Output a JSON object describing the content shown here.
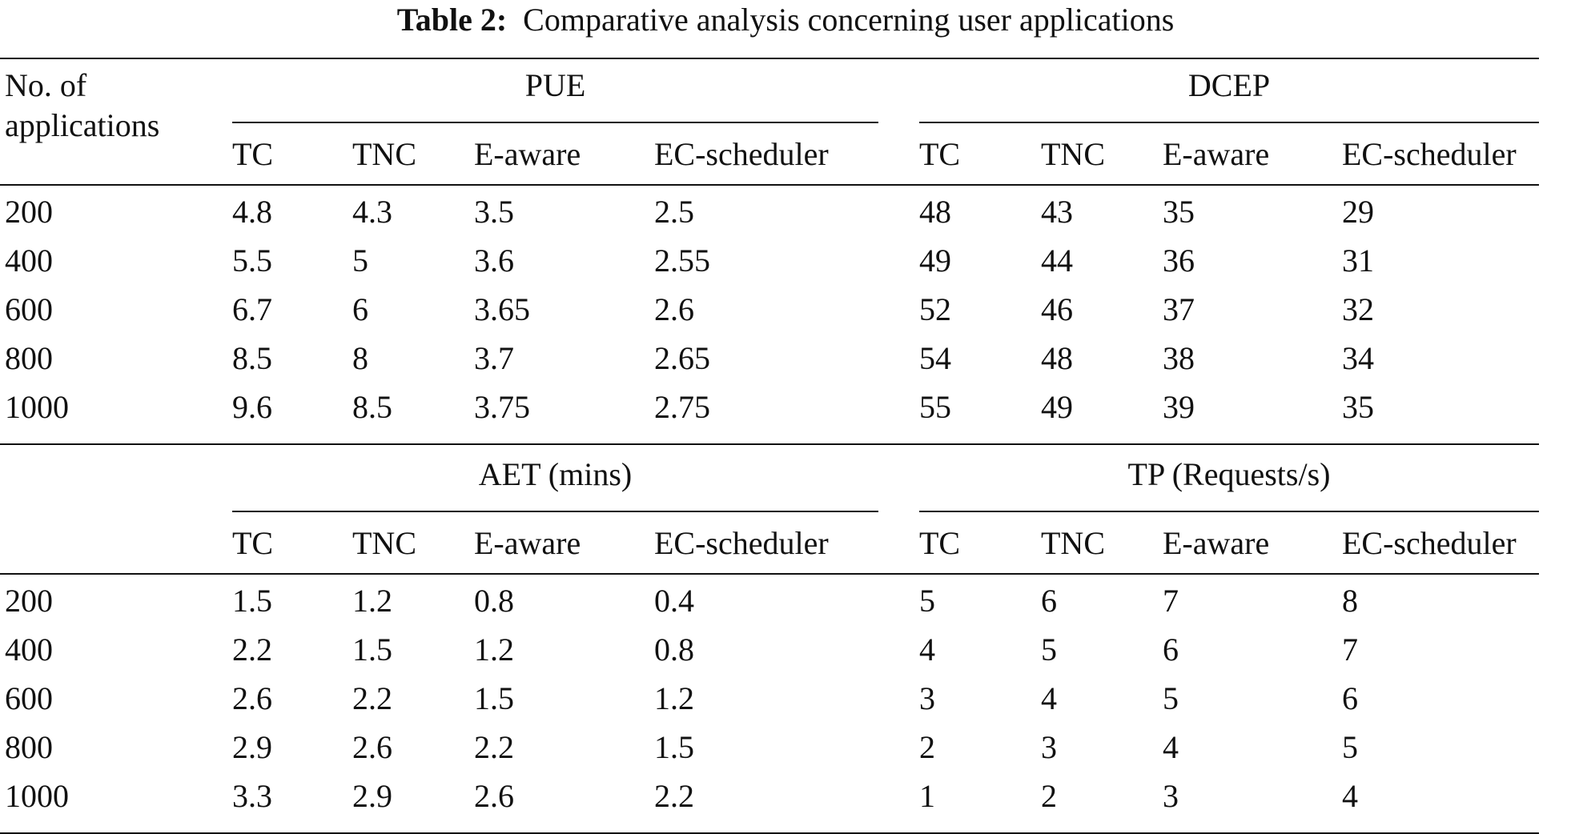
{
  "caption": {
    "label": "Table 2:",
    "text": "Comparative analysis concerning user applications"
  },
  "table": {
    "row_header_line1": "No. of",
    "row_header_line2": "applications",
    "sub_headers": [
      "TC",
      "TNC",
      "E-aware",
      "EC-scheduler"
    ],
    "panels": [
      {
        "left_metric": "PUE",
        "right_metric": "DCEP",
        "rows": [
          [
            "200",
            "4.8",
            "4.3",
            "3.5",
            "2.5",
            "48",
            "43",
            "35",
            "29"
          ],
          [
            "400",
            "5.5",
            "5",
            "3.6",
            "2.55",
            "49",
            "44",
            "36",
            "31"
          ],
          [
            "600",
            "6.7",
            "6",
            "3.65",
            "2.6",
            "52",
            "46",
            "37",
            "32"
          ],
          [
            "800",
            "8.5",
            "8",
            "3.7",
            "2.65",
            "54",
            "48",
            "38",
            "34"
          ],
          [
            "1000",
            "9.6",
            "8.5",
            "3.75",
            "2.75",
            "55",
            "49",
            "39",
            "35"
          ]
        ]
      },
      {
        "left_metric": "AET (mins)",
        "right_metric": "TP (Requests/s)",
        "rows": [
          [
            "200",
            "1.5",
            "1.2",
            "0.8",
            "0.4",
            "5",
            "6",
            "7",
            "8"
          ],
          [
            "400",
            "2.2",
            "1.5",
            "1.2",
            "0.8",
            "4",
            "5",
            "6",
            "7"
          ],
          [
            "600",
            "2.6",
            "2.2",
            "1.5",
            "1.2",
            "3",
            "4",
            "5",
            "6"
          ],
          [
            "800",
            "2.9",
            "2.6",
            "2.2",
            "1.5",
            "2",
            "3",
            "4",
            "5"
          ],
          [
            "1000",
            "3.3",
            "2.9",
            "2.6",
            "2.2",
            "1",
            "2",
            "3",
            "4"
          ]
        ]
      }
    ]
  }
}
